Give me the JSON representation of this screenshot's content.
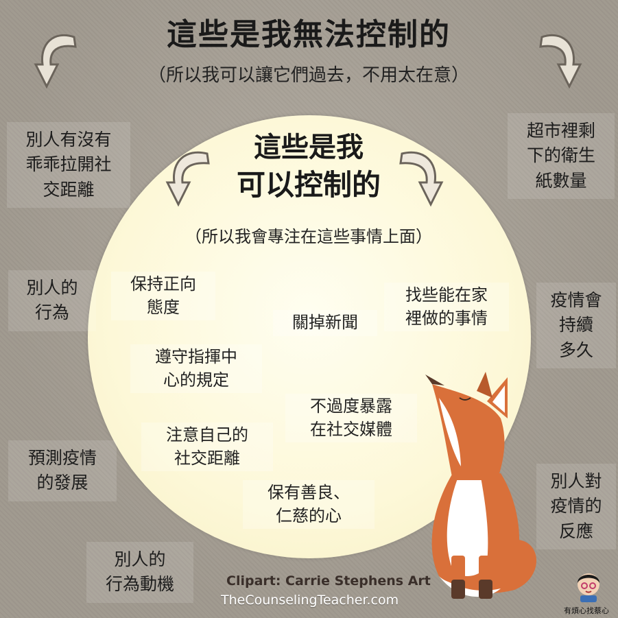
{
  "outer": {
    "title": "這些是我無法控制的",
    "subtitle": "（所以我可以讓它們過去，不用太在意）"
  },
  "inner": {
    "title_line1": "這些是我",
    "title_line2": "可以控制的",
    "subtitle": "（所以我會專注在這些事情上面）"
  },
  "controllable": [
    "保持正向\n態度",
    "關掉新聞",
    "找些能在家\n裡做的事情",
    "遵守指揮中\n心的規定",
    "不過度暴露\n在社交媒體",
    "注意自己的\n社交距離",
    "保有善良、\n仁慈的心"
  ],
  "uncontrollable": [
    "別人有沒有\n乖乖拉開社\n交距離",
    "別人的\n行為",
    "預測疫情\n的發展",
    "別人的\n行為動機",
    "超市裡剩\n下的衛生\n紙數量",
    "疫情會\n持續\n多久",
    "別人對\n疫情的\n反應"
  ],
  "credit": "Clipart: Carrie Stephens Art",
  "site": "TheCounselingTeacher.com",
  "logo_text": "有煩心找蔡心",
  "colors": {
    "background": "#a8a196",
    "circle": "#fdf8d8",
    "fox_orange": "#d9703a",
    "arrow_fill": "#e8e2d6"
  },
  "icons": [
    "curved-arrow-icon",
    "fox-illustration",
    "avatar-logo-icon"
  ]
}
